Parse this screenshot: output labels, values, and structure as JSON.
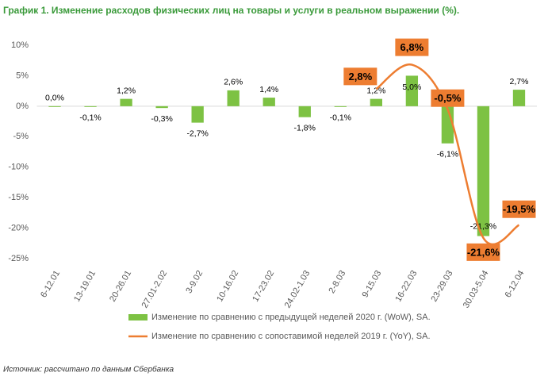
{
  "chart_data": {
    "type": "bar",
    "title": "График 1. Изменение расходов физических лиц на товары и услуги в реальном выражении (%).",
    "source": "Источник: рассчитано по данным Сбербанка",
    "categories": [
      "6-12.01",
      "13-19.01",
      "20-26.01",
      "27.01-2.02",
      "3-9.02",
      "10-16.02",
      "17-23.02",
      "24.02-1.03",
      "2-8.03",
      "9-15.03",
      "16-22.03",
      "23-29.03",
      "30.03-5.04",
      "6-12.04"
    ],
    "series": [
      {
        "name": "Изменение по сравнению с предыдущей неделей 2020 г. (WoW), SA.",
        "type": "bar",
        "color": "#7dc243",
        "values": [
          0.0,
          -0.1,
          1.2,
          -0.3,
          -2.7,
          2.6,
          1.4,
          -1.8,
          -0.1,
          1.2,
          5.0,
          -6.1,
          -21.3,
          2.7
        ],
        "value_labels": [
          "0,0%",
          "-0,1%",
          "1,2%",
          "-0,3%",
          "-2,7%",
          "2,6%",
          "1,4%",
          "-1,8%",
          "-0,1%",
          "1,2%",
          "5,0%",
          "-6,1%",
          "-21,3%",
          "2,7%"
        ]
      },
      {
        "name": "Изменение по сравнению с сопоставимой неделей 2019 г. (YoY), SA.",
        "type": "line",
        "color": "#ed7d31",
        "values": [
          null,
          null,
          null,
          null,
          null,
          null,
          null,
          null,
          null,
          2.8,
          6.8,
          -0.5,
          -21.6,
          -19.5
        ],
        "value_labels": [
          null,
          null,
          null,
          null,
          null,
          null,
          null,
          null,
          null,
          "2,8%",
          "6,8%",
          "-0,5%",
          "-21,6%",
          "-19,5%"
        ]
      }
    ],
    "ylim": [
      -25,
      10
    ],
    "yticks": [
      {
        "value": 10,
        "label": "10%"
      },
      {
        "value": 5,
        "label": "5%"
      },
      {
        "value": 0,
        "label": "0%"
      },
      {
        "value": -5,
        "label": "-5%"
      },
      {
        "value": -10,
        "label": "-10%"
      },
      {
        "value": -15,
        "label": "-15%"
      },
      {
        "value": -20,
        "label": "-20%"
      },
      {
        "value": -25,
        "label": "-25%"
      }
    ],
    "grid": false
  }
}
